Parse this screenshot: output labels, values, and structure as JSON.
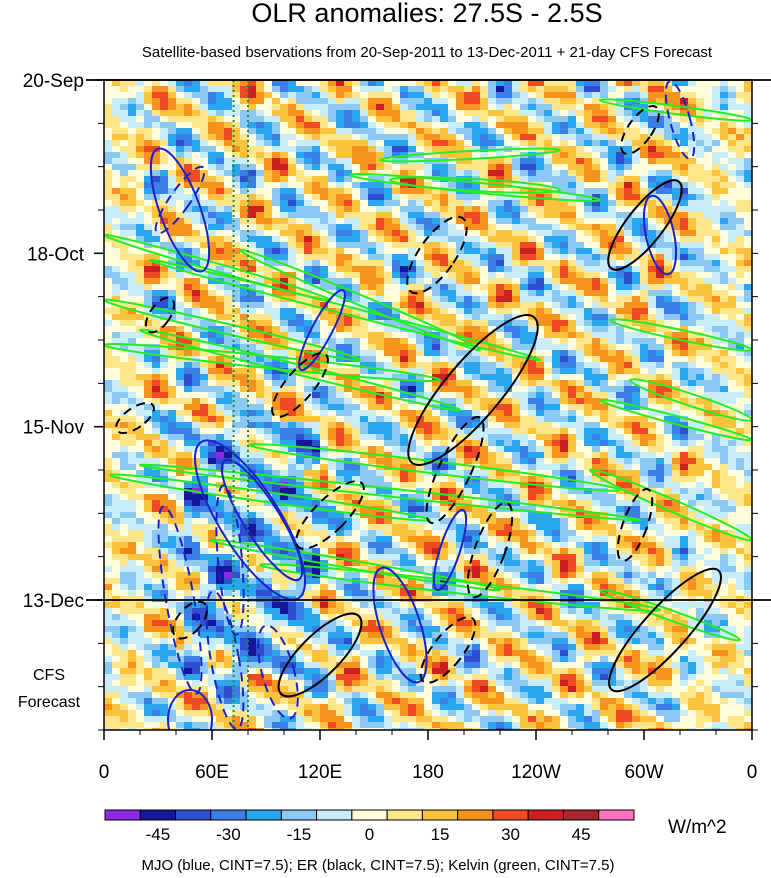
{
  "chart_data": {
    "type": "heatmap",
    "title": "OLR anomalies: 27.5S - 2.5S",
    "subtitle": "Satellite-based bservations from 20-Sep-2011 to 13-Dec-2011 + 21-day CFS Forecast",
    "x_ticks": [
      "0",
      "60E",
      "120E",
      "180",
      "120W",
      "60W",
      "0"
    ],
    "x_values_deg_east": [
      0,
      60,
      120,
      180,
      240,
      300,
      360
    ],
    "y_ticks": [
      "20-Sep",
      "18-Oct",
      "15-Nov",
      "13-Dec"
    ],
    "y_days_since_start": [
      0,
      28,
      56,
      84
    ],
    "y_range_days": [
      0,
      105
    ],
    "forecast_label_line1": "CFS",
    "forecast_label_line2": "Forecast",
    "forecast_start": "13-Dec",
    "colorbar": {
      "tick_labels": [
        "-45",
        "-30",
        "-15",
        "0",
        "15",
        "30",
        "45"
      ],
      "levels": [
        -52.5,
        -45,
        -37.5,
        -30,
        -22.5,
        -15,
        -7.5,
        0,
        7.5,
        15,
        22.5,
        30,
        37.5,
        45,
        52.5
      ],
      "colors": [
        "#8a2be2",
        "#16169a",
        "#2f4fd0",
        "#3a7fe6",
        "#2aa6ee",
        "#8cc8f4",
        "#c8ecfa",
        "#fffddc",
        "#fde68a",
        "#fbc23d",
        "#f6921e",
        "#ef4a24",
        "#cc1f1f",
        "#a4282e",
        "#ff74c0"
      ],
      "units": "W/m^2"
    },
    "contour_legend": "MJO (blue, CINT=7.5); ER (black, CINT=7.5); Kelvin (green, CINT=7.5)",
    "contour_series": [
      {
        "name": "MJO",
        "color": "#1a22cc"
      },
      {
        "name": "ER",
        "color": "#000000"
      },
      {
        "name": "Kelvin",
        "color": "#22ee22"
      }
    ],
    "reference_lines_deg_east": [
      72,
      80
    ]
  }
}
